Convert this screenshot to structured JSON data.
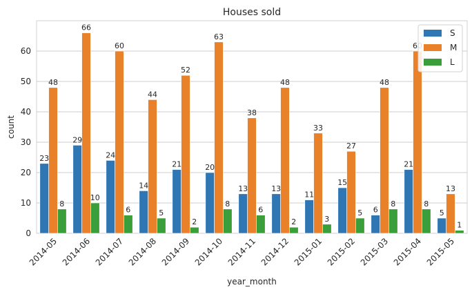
{
  "chart_data": {
    "type": "bar",
    "title": "Houses sold",
    "xlabel": "year_month",
    "ylabel": "count",
    "ylim": [
      0,
      70
    ],
    "yticks": [
      0,
      10,
      20,
      30,
      40,
      50,
      60
    ],
    "grid": true,
    "legend_position": "top-right",
    "categories": [
      "2014-05",
      "2014-06",
      "2014-07",
      "2014-08",
      "2014-09",
      "2014-10",
      "2014-11",
      "2014-12",
      "2015-01",
      "2015-02",
      "2015-03",
      "2015-04",
      "2015-05"
    ],
    "series": [
      {
        "name": "S",
        "color": "#2f77b4",
        "values": [
          23,
          29,
          24,
          14,
          21,
          20,
          13,
          13,
          11,
          15,
          6,
          21,
          5
        ]
      },
      {
        "name": "M",
        "color": "#e8812a",
        "values": [
          48,
          66,
          60,
          44,
          52,
          63,
          38,
          48,
          33,
          27,
          48,
          60,
          13
        ]
      },
      {
        "name": "L",
        "color": "#3a9e3a",
        "values": [
          8,
          10,
          6,
          5,
          2,
          8,
          6,
          2,
          3,
          5,
          8,
          8,
          1
        ]
      }
    ]
  }
}
